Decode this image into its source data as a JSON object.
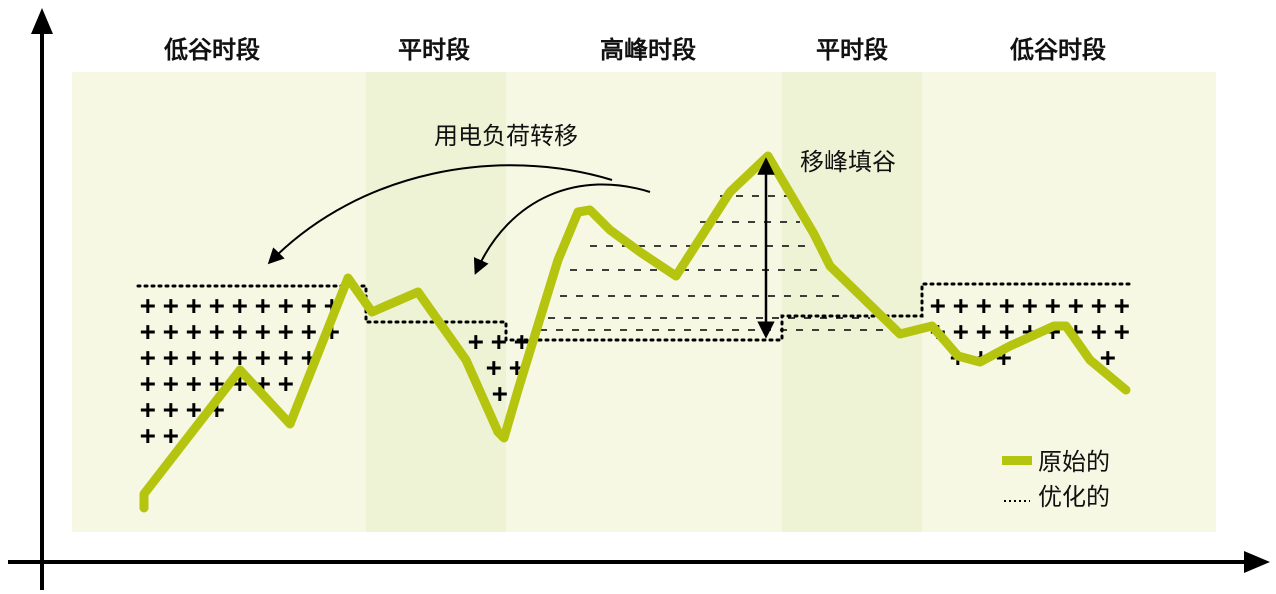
{
  "periods": [
    {
      "label": "低谷时段",
      "kind": "valley"
    },
    {
      "label": "平时段",
      "kind": "flat"
    },
    {
      "label": "高峰时段",
      "kind": "peak"
    },
    {
      "label": "平时段",
      "kind": "flat"
    },
    {
      "label": "低谷时段",
      "kind": "valley"
    }
  ],
  "annotations": {
    "load_shift": "用电负荷转移",
    "peak_shaving": "移峰填谷"
  },
  "legend": {
    "original": "原始的",
    "optimized": "优化的"
  },
  "colors": {
    "background_light": "#f6f8e4",
    "background_flat": "#eef3d6",
    "original_line": "#b5c40e",
    "optimized_line": "#000000",
    "axis": "#000000"
  },
  "icons": {
    "x_axis": "arrow-right",
    "y_axis": "arrow-up",
    "fill_marker": "plus-sign",
    "peak_marker": "dashed-lines"
  }
}
